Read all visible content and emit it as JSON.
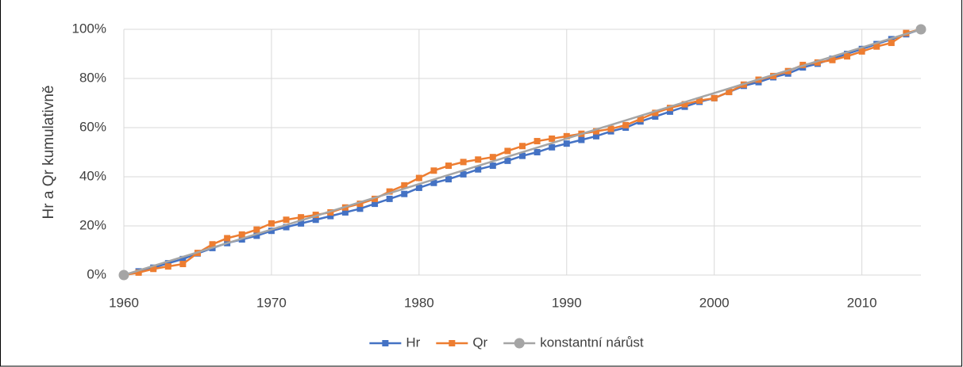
{
  "chart_data": {
    "type": "line",
    "y_axis_title": "Hr a Qr kumulativně",
    "xlim": [
      1960,
      2014
    ],
    "xticks": [
      1960,
      1970,
      1980,
      1990,
      2000,
      2010
    ],
    "ylim": [
      0,
      100
    ],
    "yticks": [
      {
        "value": 0,
        "label": "0%"
      },
      {
        "value": 20,
        "label": "20%"
      },
      {
        "value": 40,
        "label": "40%"
      },
      {
        "value": 60,
        "label": "60%"
      },
      {
        "value": 80,
        "label": "80%"
      },
      {
        "value": 100,
        "label": "100%"
      }
    ],
    "grid": true,
    "legend": "bottom",
    "x": [
      1960,
      1961,
      1962,
      1963,
      1964,
      1965,
      1966,
      1967,
      1968,
      1969,
      1970,
      1971,
      1972,
      1973,
      1974,
      1975,
      1976,
      1977,
      1978,
      1979,
      1980,
      1981,
      1982,
      1983,
      1984,
      1985,
      1986,
      1987,
      1988,
      1989,
      1990,
      1991,
      1992,
      1993,
      1994,
      1995,
      1996,
      1997,
      1998,
      1999,
      2000,
      2001,
      2002,
      2003,
      2004,
      2005,
      2006,
      2007,
      2008,
      2009,
      2010,
      2011,
      2012,
      2013,
      2014
    ],
    "series": [
      {
        "name": "Hr",
        "color": "#4472c4",
        "marker": "square",
        "values": [
          0,
          1.5,
          3,
          4.8,
          6.5,
          8.8,
          11,
          13,
          14.5,
          16,
          18,
          19.5,
          21,
          22.5,
          24,
          25.5,
          27,
          29,
          31,
          33,
          35.5,
          37.5,
          39,
          41,
          43,
          44.5,
          46.5,
          48.5,
          50,
          52,
          53.5,
          55,
          56.5,
          58.5,
          60,
          62.5,
          64.5,
          66.5,
          68.5,
          70.5,
          72,
          74.5,
          77,
          78.5,
          80.5,
          82,
          84.5,
          86,
          88,
          90,
          92,
          94,
          96,
          98,
          100
        ]
      },
      {
        "name": "Qr",
        "color": "#ed7d31",
        "marker": "square",
        "values": [
          0,
          1,
          2.5,
          3.5,
          4.5,
          9,
          12.5,
          15,
          16.5,
          18.5,
          21,
          22.5,
          23.5,
          24.5,
          25.5,
          27.5,
          29,
          31,
          34,
          36.5,
          39.5,
          42.5,
          44.5,
          46,
          47,
          48,
          50.5,
          52.5,
          54.5,
          55.5,
          56.5,
          57.5,
          58.5,
          59.5,
          61,
          63.5,
          66,
          68,
          69.5,
          71,
          72,
          74.5,
          77.5,
          79.5,
          81,
          83,
          85.5,
          86.5,
          87.5,
          89,
          91,
          93,
          94.5,
          98.5,
          100
        ]
      },
      {
        "name": "konstantní nárůst",
        "color": "#a5a5a5",
        "marker": "circle",
        "x": [
          1960,
          2014
        ],
        "values": [
          0,
          100
        ]
      }
    ]
  }
}
